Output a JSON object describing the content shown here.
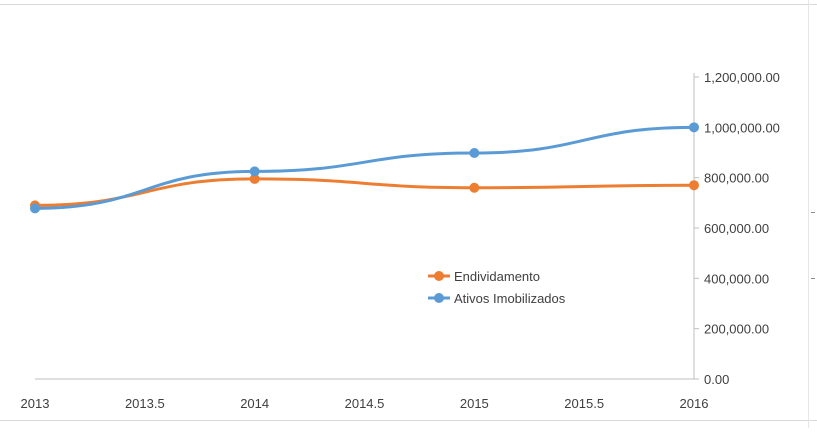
{
  "chart_data": {
    "type": "line",
    "x_ticks": [
      "2013",
      "2013.5",
      "2014",
      "2014.5",
      "2015",
      "2015.5",
      "2016"
    ],
    "y_ticks": [
      "0.00",
      "200,000.00",
      "400,000.00",
      "600,000.00",
      "800,000.00",
      "1,000,000.00",
      "1,200,000.00"
    ],
    "xlim": [
      2013,
      2016
    ],
    "ylim": [
      0,
      1200000
    ],
    "y_axis_position": "right",
    "grid": false,
    "legend_position": "center-right",
    "series": [
      {
        "name": "Endividamento",
        "color": "#ED7D31",
        "x": [
          2013,
          2014,
          2015,
          2016
        ],
        "y": [
          690000,
          795000,
          760000,
          770000
        ]
      },
      {
        "name": "Ativos Imobilizados",
        "color": "#5B9BD5",
        "x": [
          2013,
          2014,
          2015,
          2016
        ],
        "y": [
          678000,
          825000,
          898000,
          1000000
        ]
      }
    ]
  }
}
